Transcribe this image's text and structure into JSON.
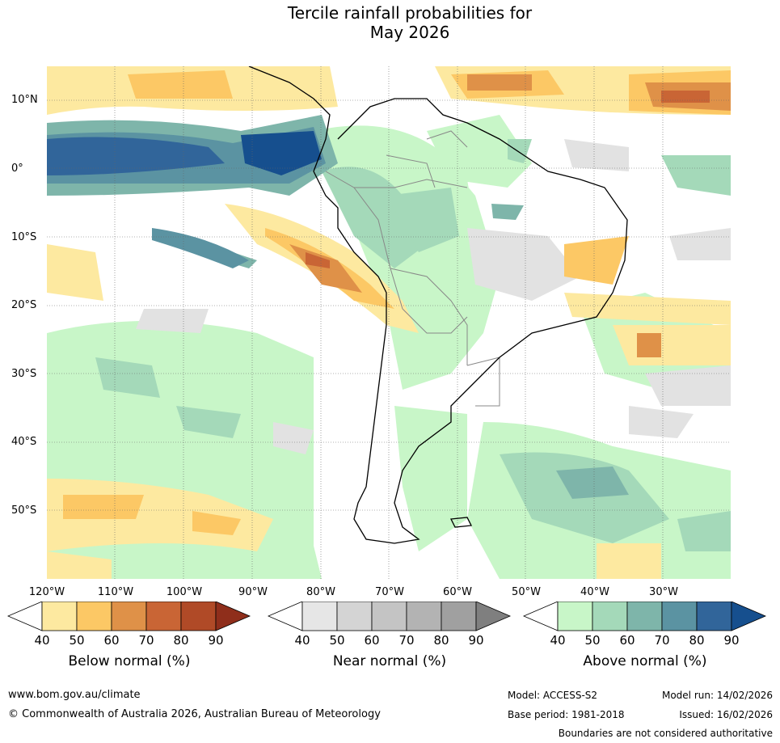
{
  "title": {
    "line1": "Tercile rainfall probabilities for",
    "line2": "May 2026"
  },
  "map": {
    "lat_labels": [
      "10°N",
      "0°",
      "10°S",
      "20°S",
      "30°S",
      "40°S",
      "50°S"
    ],
    "lon_labels": [
      "120°W",
      "110°W",
      "100°W",
      "90°W",
      "80°W",
      "70°W",
      "60°W",
      "50°W",
      "40°W",
      "30°W"
    ]
  },
  "legends": {
    "below": {
      "title": "Below normal (%)",
      "ticks": [
        "40",
        "50",
        "60",
        "70",
        "80",
        "90"
      ],
      "colors": [
        "#ffffff",
        "#fde9a0",
        "#fcc865",
        "#df9148",
        "#c96535",
        "#b04a27",
        "#8f2e1b"
      ]
    },
    "near": {
      "title": "Near normal (%)",
      "ticks": [
        "40",
        "50",
        "60",
        "70",
        "80",
        "90"
      ],
      "colors": [
        "#ffffff",
        "#e6e6e6",
        "#d4d4d4",
        "#c4c4c4",
        "#b3b3b3",
        "#a0a0a0",
        "#7f7f7f"
      ]
    },
    "above": {
      "title": "Above normal (%)",
      "ticks": [
        "40",
        "50",
        "60",
        "70",
        "80",
        "90"
      ],
      "colors": [
        "#ffffff",
        "#c8f6c8",
        "#a4d9b9",
        "#7eb5aa",
        "#5b93a2",
        "#31659a",
        "#164f8e"
      ]
    }
  },
  "footer": {
    "url": "www.bom.gov.au/climate",
    "copyright": "© Commonwealth of Australia 2026, Australian Bureau of Meteorology",
    "model": "Model: ACCESS-S2",
    "base_period": "Base period: 1981-2018",
    "model_run": "Model run: 14/02/2026",
    "issued": "Issued: 16/02/2026",
    "disclaimer": "Boundaries are not considered authoritative"
  }
}
